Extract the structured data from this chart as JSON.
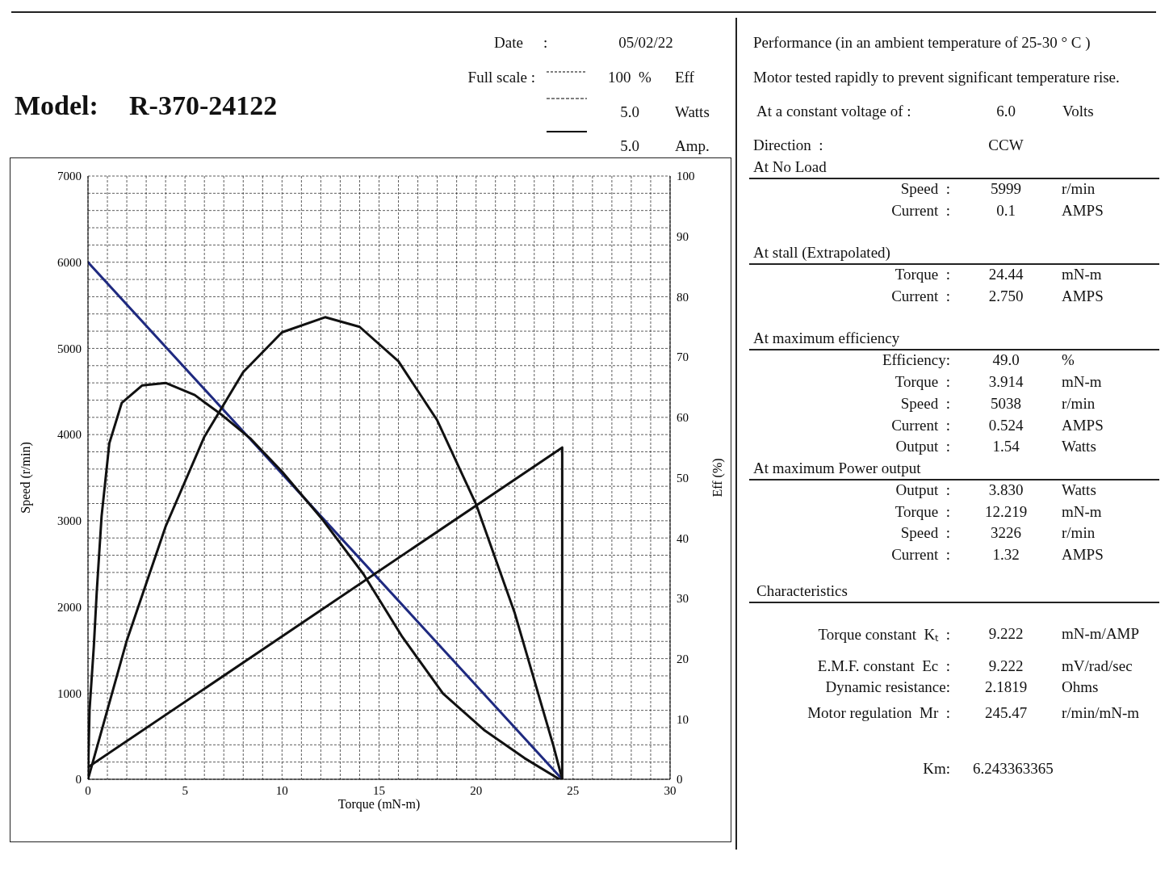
{
  "chart_data": {
    "type": "line",
    "xlabel": "Torque (mN-m)",
    "ylabel": "Speed (r/min)",
    "y2label": "Eff (%)",
    "xlim": [
      0,
      30
    ],
    "xticks": [
      0,
      {
        "value": 1,
        "label": null
      },
      {
        "value": 2,
        "label": null
      },
      {
        "value": 3,
        "label": null
      },
      {
        "value": 4,
        "label": null
      },
      5,
      {
        "value": 6,
        "label": null
      },
      {
        "value": 7,
        "label": null
      },
      {
        "value": 8,
        "label": null
      },
      {
        "value": 9,
        "label": null
      },
      10,
      {
        "value": 11,
        "label": null
      },
      {
        "value": 12,
        "label": null
      },
      {
        "value": 13,
        "label": null
      },
      {
        "value": 14,
        "label": null
      },
      15,
      {
        "value": 16,
        "label": null
      },
      {
        "value": 17,
        "label": null
      },
      {
        "value": 18,
        "label": null
      },
      {
        "value": 19,
        "label": null
      },
      20,
      {
        "value": 21,
        "label": null
      },
      {
        "value": 22,
        "label": null
      },
      {
        "value": 23,
        "label": null
      },
      {
        "value": 24,
        "label": null
      },
      25,
      {
        "value": 26,
        "label": null
      },
      {
        "value": 27,
        "label": null
      },
      {
        "value": 28,
        "label": null
      },
      {
        "value": 29,
        "label": null
      },
      30
    ],
    "ylim": [
      0,
      7000
    ],
    "yticks": [
      0,
      {
        "value": 200,
        "label": null
      },
      {
        "value": 400,
        "label": null
      },
      {
        "value": 600,
        "label": null
      },
      {
        "value": 800,
        "label": null
      },
      1000,
      {
        "value": 1200,
        "label": null
      },
      {
        "value": 1400,
        "label": null
      },
      {
        "value": 1600,
        "label": null
      },
      {
        "value": 1800,
        "label": null
      },
      2000,
      {
        "value": 2200,
        "label": null
      },
      {
        "value": 2400,
        "label": null
      },
      {
        "value": 2600,
        "label": null
      },
      {
        "value": 2800,
        "label": null
      },
      3000,
      {
        "value": 3200,
        "label": null
      },
      {
        "value": 3400,
        "label": null
      },
      {
        "value": 3600,
        "label": null
      },
      {
        "value": 3800,
        "label": null
      },
      4000,
      {
        "value": 4200,
        "label": null
      },
      {
        "value": 4400,
        "label": null
      },
      {
        "value": 4600,
        "label": null
      },
      {
        "value": 4800,
        "label": null
      },
      5000,
      {
        "value": 5200,
        "label": null
      },
      {
        "value": 5400,
        "label": null
      },
      {
        "value": 5600,
        "label": null
      },
      {
        "value": 5800,
        "label": null
      },
      6000,
      {
        "value": 6200,
        "label": null
      },
      {
        "value": 6400,
        "label": null
      },
      {
        "value": 6600,
        "label": null
      },
      {
        "value": 6800,
        "label": null
      },
      7000
    ],
    "y2lim": [
      0,
      100
    ],
    "y2ticks": [
      0,
      10,
      20,
      30,
      40,
      50,
      60,
      70,
      80,
      90,
      100
    ],
    "grid": true,
    "series": [
      {
        "color": "#1f2a80",
        "x": [
          0,
          24.44
        ],
        "values": [
          6000,
          0
        ]
      },
      {
        "color": "#111111",
        "axis": "y2",
        "x": [
          0,
          0.08,
          0.3,
          0.45,
          0.7,
          1.1,
          1.74,
          2.8,
          4.0,
          5.5,
          6.9,
          8.4,
          10,
          12.1,
          14.2,
          16.2,
          18.3,
          20.4,
          22.5,
          24.3
        ],
        "values": [
          0,
          11.5,
          22,
          31,
          43.6,
          55.7,
          62.4,
          65.3,
          65.7,
          63.7,
          60.4,
          56.4,
          51,
          43,
          34,
          23.6,
          14.2,
          8.2,
          3.5,
          0
        ]
      },
      {
        "color": "#111111",
        "axis": "y2",
        "x": [
          0,
          2,
          4,
          6,
          8,
          10,
          12.22,
          14,
          16,
          18,
          20,
          22,
          24,
          24.44
        ],
        "values": [
          0,
          23,
          41.9,
          56.8,
          67.5,
          74.1,
          76.6,
          75,
          69.3,
          59.5,
          45.6,
          27.5,
          5.4,
          0
        ]
      },
      {
        "color": "#111111",
        "axis": "y2",
        "x": [
          0,
          24.44,
          24.44
        ],
        "values": [
          2,
          55,
          0
        ]
      }
    ],
    "annotations": [
      "Date",
      ":",
      "05/02/22",
      "Full scale :",
      "100  %",
      "Eff",
      "5.0",
      "Watts",
      "5.0",
      "Amp.",
      "Model:",
      "R-370-24122",
      "Performance (in an ambient temperature of 25-30 ° C )",
      "Motor tested rapidly to prevent significant temperature rise.",
      "At a constant voltage of :",
      "6.0",
      "Volts",
      "Direction  :",
      "CCW",
      "At No Load",
      "Speed  :",
      "5999",
      "r/min",
      "Current  :",
      "0.1",
      "AMPS",
      "At stall (Extrapolated)",
      "Torque  :",
      "24.44",
      "mN-m",
      "Current  :",
      "2.750",
      "AMPS",
      "At maximum efficiency",
      "Efficiency:",
      "49.0",
      "%",
      "Torque  :",
      "3.914",
      "mN-m",
      "Speed  :",
      "5038",
      "r/min",
      "Current  :",
      "0.524",
      "AMPS",
      "Output  :",
      "1.54",
      "Watts",
      "At maximum Power output",
      "Output  :",
      "3.830",
      "Watts",
      "Torque  :",
      "12.219",
      "mN-m",
      "Speed  :",
      "3226",
      "r/min",
      "Current  :",
      "1.32",
      "AMPS",
      "Characteristics",
      "Torque constant  Kₜ  :",
      "9.222",
      "mN-m/AMP",
      "E.M.F. constant  Ec  :",
      "9.222",
      "mV/rad/sec",
      "Dynamic resistance:",
      "2.1819",
      "Ohms",
      "Motor regulation  Mr  :",
      "245.47",
      "r/min/mN-m",
      "Km:",
      "6.243363365"
    ]
  }
}
